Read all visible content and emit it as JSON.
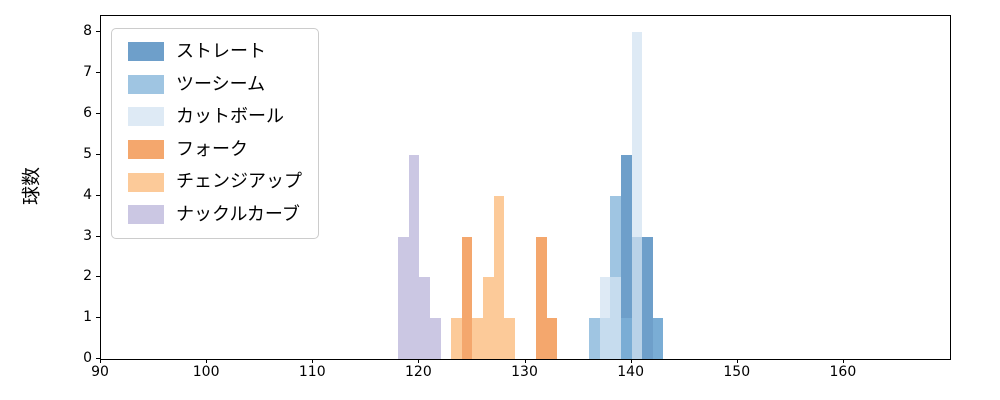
{
  "figure": {
    "x_ticks": [
      90,
      100,
      110,
      120,
      130,
      140,
      150,
      160
    ],
    "y_ticks": [
      0,
      1,
      2,
      3,
      4,
      5,
      6,
      7,
      8
    ]
  },
  "chart_data": {
    "type": "bar",
    "subtype": "histogram",
    "title": "",
    "xlabel": "",
    "ylabel": "球数",
    "xlim": [
      90,
      170
    ],
    "ylim": [
      0,
      8.4
    ],
    "bin_width": 1,
    "grid": false,
    "legend_position": "upper left",
    "series": [
      {
        "name": "ストレート",
        "color": "#3d7fb8",
        "alpha": 0.75,
        "bins": [
          [
            139,
            5
          ],
          [
            140,
            3
          ],
          [
            141,
            3
          ],
          [
            142,
            1
          ]
        ]
      },
      {
        "name": "ツーシーム",
        "color": "#7fb2d8",
        "alpha": 0.75,
        "bins": [
          [
            136,
            1
          ],
          [
            137,
            1
          ],
          [
            138,
            4
          ],
          [
            139,
            1
          ],
          [
            142,
            1
          ]
        ]
      },
      {
        "name": "カットボール",
        "color": "#d3e3f2",
        "alpha": 0.75,
        "bins": [
          [
            137,
            2
          ],
          [
            138,
            2
          ],
          [
            140,
            8
          ]
        ]
      },
      {
        "name": "フォーク",
        "color": "#f08a3c",
        "alpha": 0.75,
        "bins": [
          [
            124,
            3
          ],
          [
            131,
            3
          ],
          [
            132,
            1
          ]
        ]
      },
      {
        "name": "チェンジアップ",
        "color": "#fbb877",
        "alpha": 0.75,
        "bins": [
          [
            123,
            1
          ],
          [
            125,
            1
          ],
          [
            126,
            2
          ],
          [
            127,
            4
          ],
          [
            128,
            1
          ]
        ]
      },
      {
        "name": "ナックルカーブ",
        "color": "#b9b4d9",
        "alpha": 0.75,
        "bins": [
          [
            118,
            3
          ],
          [
            119,
            5
          ],
          [
            120,
            2
          ],
          [
            121,
            1
          ]
        ]
      }
    ]
  }
}
